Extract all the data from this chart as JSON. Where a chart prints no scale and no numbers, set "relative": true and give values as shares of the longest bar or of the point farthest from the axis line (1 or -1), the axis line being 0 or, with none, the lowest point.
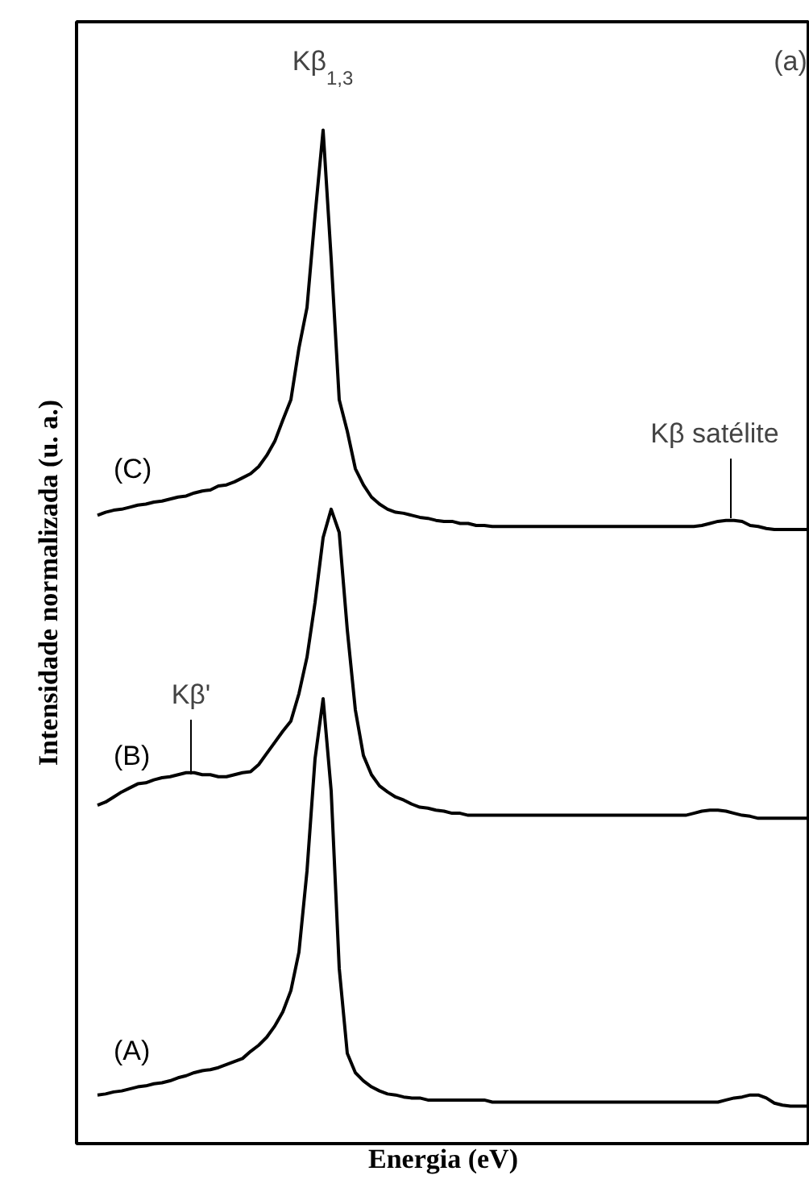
{
  "chart_data": {
    "type": "line",
    "relative": true,
    "xlabel": "Energia (eV)",
    "ylabel": "Intensidade normalizada (u. a.)",
    "annotations": [
      "Kβ$_{1,3}$",
      "(a)",
      "Kβ'",
      "Kβ satélite"
    ],
    "categories": [
      null,
      null,
      null,
      null,
      null,
      null,
      null,
      null,
      null,
      null,
      null,
      null,
      null,
      null,
      null,
      null,
      null,
      null,
      null,
      null,
      null,
      null,
      null,
      null,
      null,
      null,
      null,
      null,
      null,
      null,
      null,
      null,
      null,
      null,
      null,
      null,
      null,
      null,
      null,
      null,
      null,
      null,
      null,
      null,
      null,
      null,
      null,
      null,
      null,
      null,
      null,
      null,
      null,
      null,
      null,
      null,
      null,
      null,
      null,
      null,
      null,
      null,
      null,
      null,
      null,
      null,
      null,
      null,
      null,
      null,
      null,
      null,
      null,
      null,
      null,
      null,
      null,
      null,
      null,
      null,
      null,
      null,
      null,
      null,
      null,
      null,
      null,
      null,
      null
    ],
    "series": [
      {
        "name": "(A)",
        "color": "#000000",
        "values": [
          0.048,
          0.049,
          0.051,
          0.052,
          0.054,
          0.056,
          0.057,
          0.059,
          0.06,
          0.062,
          0.065,
          0.067,
          0.07,
          0.072,
          0.073,
          0.075,
          0.078,
          0.081,
          0.084,
          0.091,
          0.097,
          0.105,
          0.116,
          0.13,
          0.151,
          0.189,
          0.269,
          0.38,
          0.439,
          0.348,
          0.173,
          0.089,
          0.07,
          0.062,
          0.056,
          0.052,
          0.049,
          0.048,
          0.046,
          0.045,
          0.045,
          0.043,
          0.043,
          0.043,
          0.043,
          0.043,
          0.043,
          0.043,
          0.043,
          0.041,
          0.041,
          0.041,
          0.041,
          0.041,
          0.041,
          0.041,
          0.041,
          0.041,
          0.041,
          0.041,
          0.041,
          0.041,
          0.041,
          0.041,
          0.041,
          0.041,
          0.041,
          0.041,
          0.041,
          0.041,
          0.041,
          0.041,
          0.041,
          0.041,
          0.041,
          0.041,
          0.041,
          0.041,
          0.043,
          0.045,
          0.046,
          0.048,
          0.048,
          0.045,
          0.04,
          0.038,
          0.037,
          0.037,
          0.037
        ]
      },
      {
        "name": "(B)",
        "color": "#000000",
        "values": [
          0.334,
          0.337,
          0.342,
          0.347,
          0.351,
          0.355,
          0.356,
          0.359,
          0.361,
          0.362,
          0.364,
          0.366,
          0.366,
          0.364,
          0.364,
          0.362,
          0.362,
          0.364,
          0.366,
          0.367,
          0.374,
          0.385,
          0.396,
          0.407,
          0.417,
          0.444,
          0.48,
          0.534,
          0.598,
          0.626,
          0.603,
          0.507,
          0.428,
          0.383,
          0.364,
          0.353,
          0.347,
          0.342,
          0.339,
          0.335,
          0.332,
          0.331,
          0.329,
          0.328,
          0.326,
          0.326,
          0.324,
          0.324,
          0.324,
          0.324,
          0.324,
          0.324,
          0.324,
          0.324,
          0.324,
          0.324,
          0.324,
          0.324,
          0.324,
          0.324,
          0.324,
          0.324,
          0.324,
          0.324,
          0.324,
          0.324,
          0.324,
          0.324,
          0.324,
          0.324,
          0.324,
          0.324,
          0.324,
          0.324,
          0.326,
          0.328,
          0.329,
          0.329,
          0.328,
          0.326,
          0.324,
          0.323,
          0.321,
          0.321,
          0.321,
          0.321,
          0.321,
          0.321,
          0.321
        ]
      },
      {
        "name": "(C)",
        "color": "#000000",
        "values": [
          0.62,
          0.623,
          0.625,
          0.626,
          0.628,
          0.63,
          0.631,
          0.633,
          0.634,
          0.636,
          0.638,
          0.639,
          0.642,
          0.644,
          0.645,
          0.649,
          0.65,
          0.653,
          0.657,
          0.661,
          0.668,
          0.679,
          0.693,
          0.714,
          0.734,
          0.785,
          0.825,
          0.916,
          1,
          0.873,
          0.734,
          0.703,
          0.666,
          0.65,
          0.638,
          0.631,
          0.626,
          0.623,
          0.622,
          0.62,
          0.618,
          0.617,
          0.615,
          0.614,
          0.614,
          0.612,
          0.612,
          0.61,
          0.61,
          0.609,
          0.609,
          0.609,
          0.609,
          0.609,
          0.609,
          0.609,
          0.609,
          0.609,
          0.609,
          0.609,
          0.609,
          0.609,
          0.609,
          0.609,
          0.609,
          0.609,
          0.609,
          0.609,
          0.609,
          0.609,
          0.609,
          0.609,
          0.609,
          0.609,
          0.609,
          0.61,
          0.612,
          0.614,
          0.615,
          0.615,
          0.614,
          0.61,
          0.609,
          0.607,
          0.606,
          0.606,
          0.606,
          0.606,
          0.606
        ]
      }
    ]
  }
}
